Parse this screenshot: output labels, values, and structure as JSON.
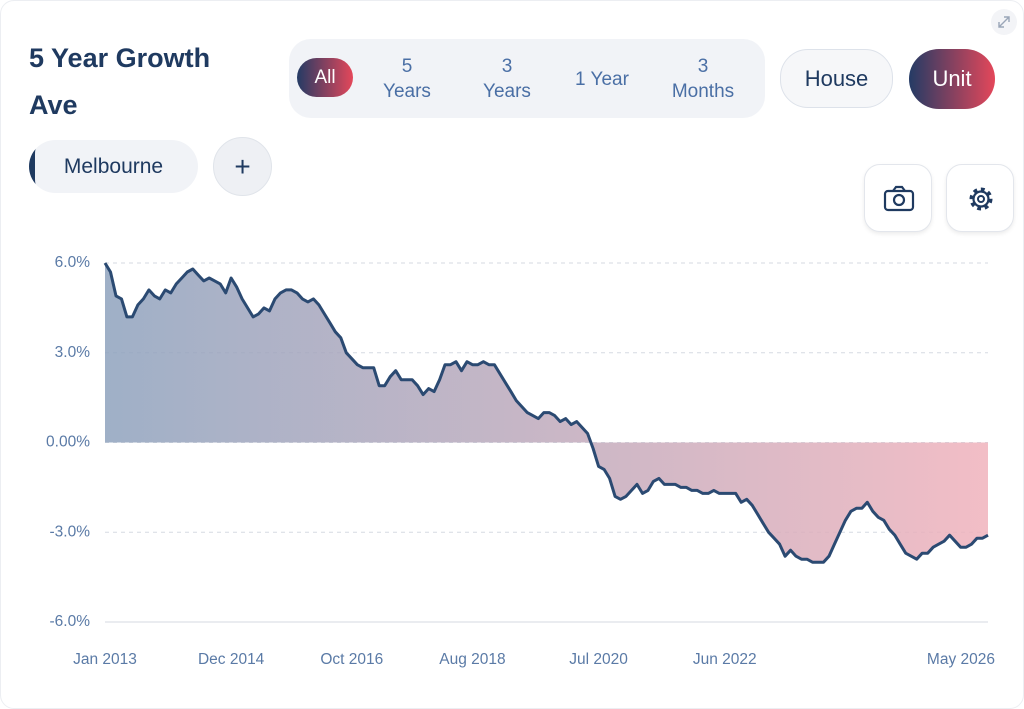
{
  "header": {
    "title": "5 Year Growth Ave"
  },
  "ranges": [
    "All",
    "5 Years",
    "3 Years",
    "1 Year",
    "3 Months"
  ],
  "property_types": [
    "House",
    "Unit"
  ],
  "regions": [
    "Melbourne"
  ],
  "add_button": "+",
  "chart_data": {
    "type": "line",
    "color": "#2b4a72",
    "grid": true,
    "categories": [
      "Jan 2013",
      "Feb 2013",
      "Mar 2013",
      "Apr 2013",
      "May 2013",
      "Jun 2013",
      "Jul 2013",
      "Aug 2013",
      "Sep 2013",
      "Oct 2013",
      "Nov 2013",
      "Dec 2013",
      "Jan 2014",
      "Feb 2014",
      "Mar 2014",
      "Apr 2014",
      "May 2014",
      "Jun 2014",
      "Jul 2014",
      "Aug 2014",
      "Sep 2014",
      "Oct 2014",
      "Nov 2014",
      "Dec 2014",
      "Jan 2015",
      "Feb 2015",
      "Mar 2015",
      "Apr 2015",
      "May 2015",
      "Jun 2015",
      "Jul 2015",
      "Aug 2015",
      "Sep 2015",
      "Oct 2015",
      "Nov 2015",
      "Dec 2015",
      "Jan 2016",
      "Feb 2016",
      "Mar 2016",
      "Apr 2016",
      "May 2016",
      "Jun 2016",
      "Jul 2016",
      "Aug 2016",
      "Sep 2016",
      "Oct 2016",
      "Nov 2016",
      "Dec 2016",
      "Jan 2017",
      "Feb 2017",
      "Mar 2017",
      "Apr 2017",
      "May 2017",
      "Jun 2017",
      "Jul 2017",
      "Aug 2017",
      "Sep 2017",
      "Oct 2017",
      "Nov 2017",
      "Dec 2017",
      "Jan 2018",
      "Feb 2018",
      "Mar 2018",
      "Apr 2018",
      "May 2018",
      "Jun 2018",
      "Jul 2018",
      "Aug 2018",
      "Sep 2018",
      "Oct 2018",
      "Nov 2018",
      "Dec 2018",
      "Jan 2019",
      "Feb 2019",
      "Mar 2019",
      "Apr 2019",
      "May 2019",
      "Jun 2019",
      "Jul 2019",
      "Aug 2019",
      "Sep 2019",
      "Oct 2019",
      "Nov 2019",
      "Dec 2019",
      "Jan 2020",
      "Feb 2020",
      "Mar 2020",
      "Apr 2020",
      "May 2020",
      "Jun 2020",
      "Jul 2020",
      "Aug 2020",
      "Sep 2020",
      "Oct 2020",
      "Nov 2020",
      "Dec 2020",
      "Jan 2021",
      "Feb 2021",
      "Mar 2021",
      "Apr 2021",
      "May 2021",
      "Jun 2021",
      "Jul 2021",
      "Aug 2021",
      "Sep 2021",
      "Oct 2021",
      "Nov 2021",
      "Dec 2021",
      "Jan 2022",
      "Feb 2022",
      "Mar 2022",
      "Apr 2022",
      "May 2022",
      "Jun 2022",
      "Jul 2022",
      "Aug 2022",
      "Sep 2022",
      "Oct 2022",
      "Nov 2022",
      "Dec 2022",
      "Jan 2023",
      "Feb 2023",
      "Mar 2023",
      "Apr 2023",
      "May 2023",
      "Jun 2023",
      "Jul 2023",
      "Aug 2023",
      "Sep 2023",
      "Oct 2023",
      "Nov 2023",
      "Dec 2023",
      "Jan 2024",
      "Feb 2024",
      "Mar 2024",
      "Apr 2024",
      "May 2024",
      "Jun 2024",
      "Jul 2024",
      "Aug 2024",
      "Sep 2024",
      "Oct 2024",
      "Nov 2024",
      "Dec 2024",
      "Jan 2025",
      "Feb 2025",
      "Mar 2025",
      "Apr 2025",
      "May 2025",
      "Jun 2025",
      "Jul 2025",
      "Aug 2025",
      "Sep 2025",
      "Oct 2025",
      "Nov 2025",
      "Dec 2025",
      "Jan 2026",
      "Feb 2026",
      "Mar 2026",
      "Apr 2026",
      "May 2026",
      "Jun 2026"
    ],
    "values": [
      6.0,
      5.7,
      4.9,
      4.8,
      4.2,
      4.2,
      4.6,
      4.8,
      5.1,
      4.9,
      4.8,
      5.1,
      5.0,
      5.3,
      5.5,
      5.7,
      5.8,
      5.6,
      5.4,
      5.5,
      5.4,
      5.3,
      5.0,
      5.5,
      5.2,
      4.8,
      4.5,
      4.2,
      4.3,
      4.5,
      4.4,
      4.8,
      5.0,
      5.1,
      5.1,
      5.0,
      4.8,
      4.7,
      4.8,
      4.6,
      4.3,
      4.0,
      3.7,
      3.5,
      3.0,
      2.8,
      2.6,
      2.5,
      2.5,
      2.5,
      1.9,
      1.9,
      2.2,
      2.4,
      2.1,
      2.1,
      2.1,
      1.9,
      1.6,
      1.8,
      1.7,
      2.1,
      2.6,
      2.6,
      2.7,
      2.4,
      2.7,
      2.6,
      2.6,
      2.7,
      2.6,
      2.6,
      2.3,
      2.0,
      1.7,
      1.4,
      1.2,
      1.0,
      0.9,
      0.8,
      1.0,
      1.0,
      0.9,
      0.7,
      0.8,
      0.6,
      0.7,
      0.5,
      0.3,
      -0.2,
      -0.8,
      -0.9,
      -1.2,
      -1.8,
      -1.9,
      -1.8,
      -1.6,
      -1.4,
      -1.7,
      -1.6,
      -1.3,
      -1.2,
      -1.4,
      -1.4,
      -1.4,
      -1.5,
      -1.5,
      -1.6,
      -1.6,
      -1.7,
      -1.7,
      -1.6,
      -1.7,
      -1.7,
      -1.7,
      -1.7,
      -2.0,
      -1.9,
      -2.1,
      -2.4,
      -2.7,
      -3.0,
      -3.2,
      -3.4,
      -3.8,
      -3.6,
      -3.8,
      -3.9,
      -3.9,
      -4.0,
      -4.0,
      -4.0,
      -3.8,
      -3.4,
      -3.0,
      -2.6,
      -2.3,
      -2.2,
      -2.2,
      -2.0,
      -2.3,
      -2.5,
      -2.6,
      -2.9,
      -3.1,
      -3.4,
      -3.7,
      -3.8,
      -3.9,
      -3.7,
      -3.7,
      -3.5,
      -3.4,
      -3.3,
      -3.1,
      -3.3,
      -3.5,
      -3.5,
      -3.4,
      -3.2,
      -3.2,
      -3.1
    ],
    "xticks": [
      "Jan 2013",
      "Dec 2014",
      "Oct 2016",
      "Aug 2018",
      "Jul 2020",
      "Jun 2022",
      "May 2026"
    ],
    "ylim": [
      -6,
      6
    ],
    "yticks": [
      {
        "value": 6,
        "label": "6.0%"
      },
      {
        "value": 3,
        "label": "3.0%"
      },
      {
        "value": 0,
        "label": "0.00%"
      },
      {
        "value": -3,
        "label": "-3.0%"
      },
      {
        "value": -6,
        "label": "-6.0%"
      }
    ]
  }
}
